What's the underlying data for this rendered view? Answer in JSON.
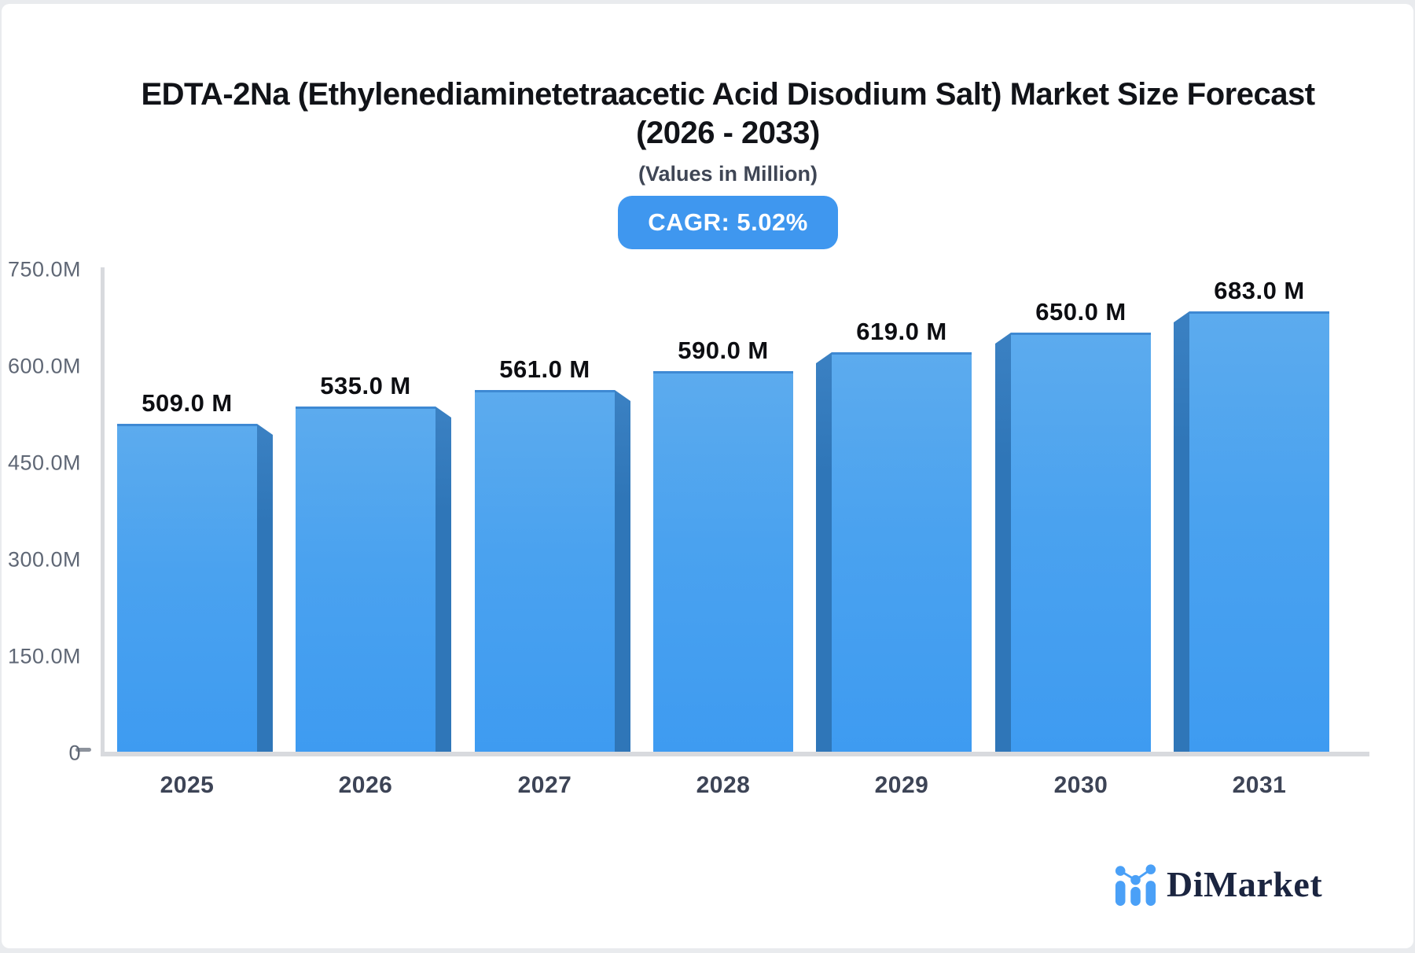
{
  "header": {
    "title_line1": "EDTA-2Na (Ethylenediaminetetraacetic Acid Disodium Salt) Market Size Forecast",
    "title_line2": "(2026 - 2033)",
    "subtitle": "(Values in Million)",
    "cagr_label": "CAGR: 5.02%"
  },
  "chart_data": {
    "type": "bar",
    "title": "EDTA-2Na (Ethylenediaminetetraacetic Acid Disodium Salt) Market Size Forecast (2026 - 2033)",
    "subtitle": "(Values in Million)",
    "cagr_percent": 5.02,
    "categories": [
      "2025",
      "2026",
      "2027",
      "2028",
      "2029",
      "2030",
      "2031"
    ],
    "values": [
      509,
      535,
      561,
      590,
      619,
      650,
      683
    ],
    "bar_labels": [
      "509.0 M",
      "535.0 M",
      "561.0 M",
      "590.0 M",
      "619.0 M",
      "650.0 M",
      "683.0 M"
    ],
    "unit": "Million",
    "xlabel": "",
    "ylabel": "",
    "ylim": [
      0,
      750
    ],
    "yticks": [
      {
        "label": "750.0M",
        "value": 750
      },
      {
        "label": "600.0M",
        "value": 600
      },
      {
        "label": "450.0M",
        "value": 450
      },
      {
        "label": "300.0M",
        "value": 300
      },
      {
        "label": "150.0M",
        "value": 150
      },
      {
        "label": "0",
        "value": 0
      }
    ],
    "grid": false,
    "legend": "none",
    "style": "3d-perspective-bars",
    "colors": {
      "bar_face_top": "#5cabee",
      "bar_face_bottom": "#3e9bf1",
      "bar_side": "#2f76b8",
      "bar_top_edge": "#3e89d3",
      "axis_line": "#d8dade",
      "y_label": "#5f6775",
      "x_label": "#3d4456",
      "value_label": "#0d0e12",
      "badge_bg": "#3f97ef",
      "badge_text": "#ffffff"
    }
  },
  "branding": {
    "logo_text": "DiMarket",
    "logo_icon": "bar-chart-with-trend-dots-icon",
    "logo_blue": "#4aa0f7",
    "logo_text_color": "#1b2540"
  }
}
